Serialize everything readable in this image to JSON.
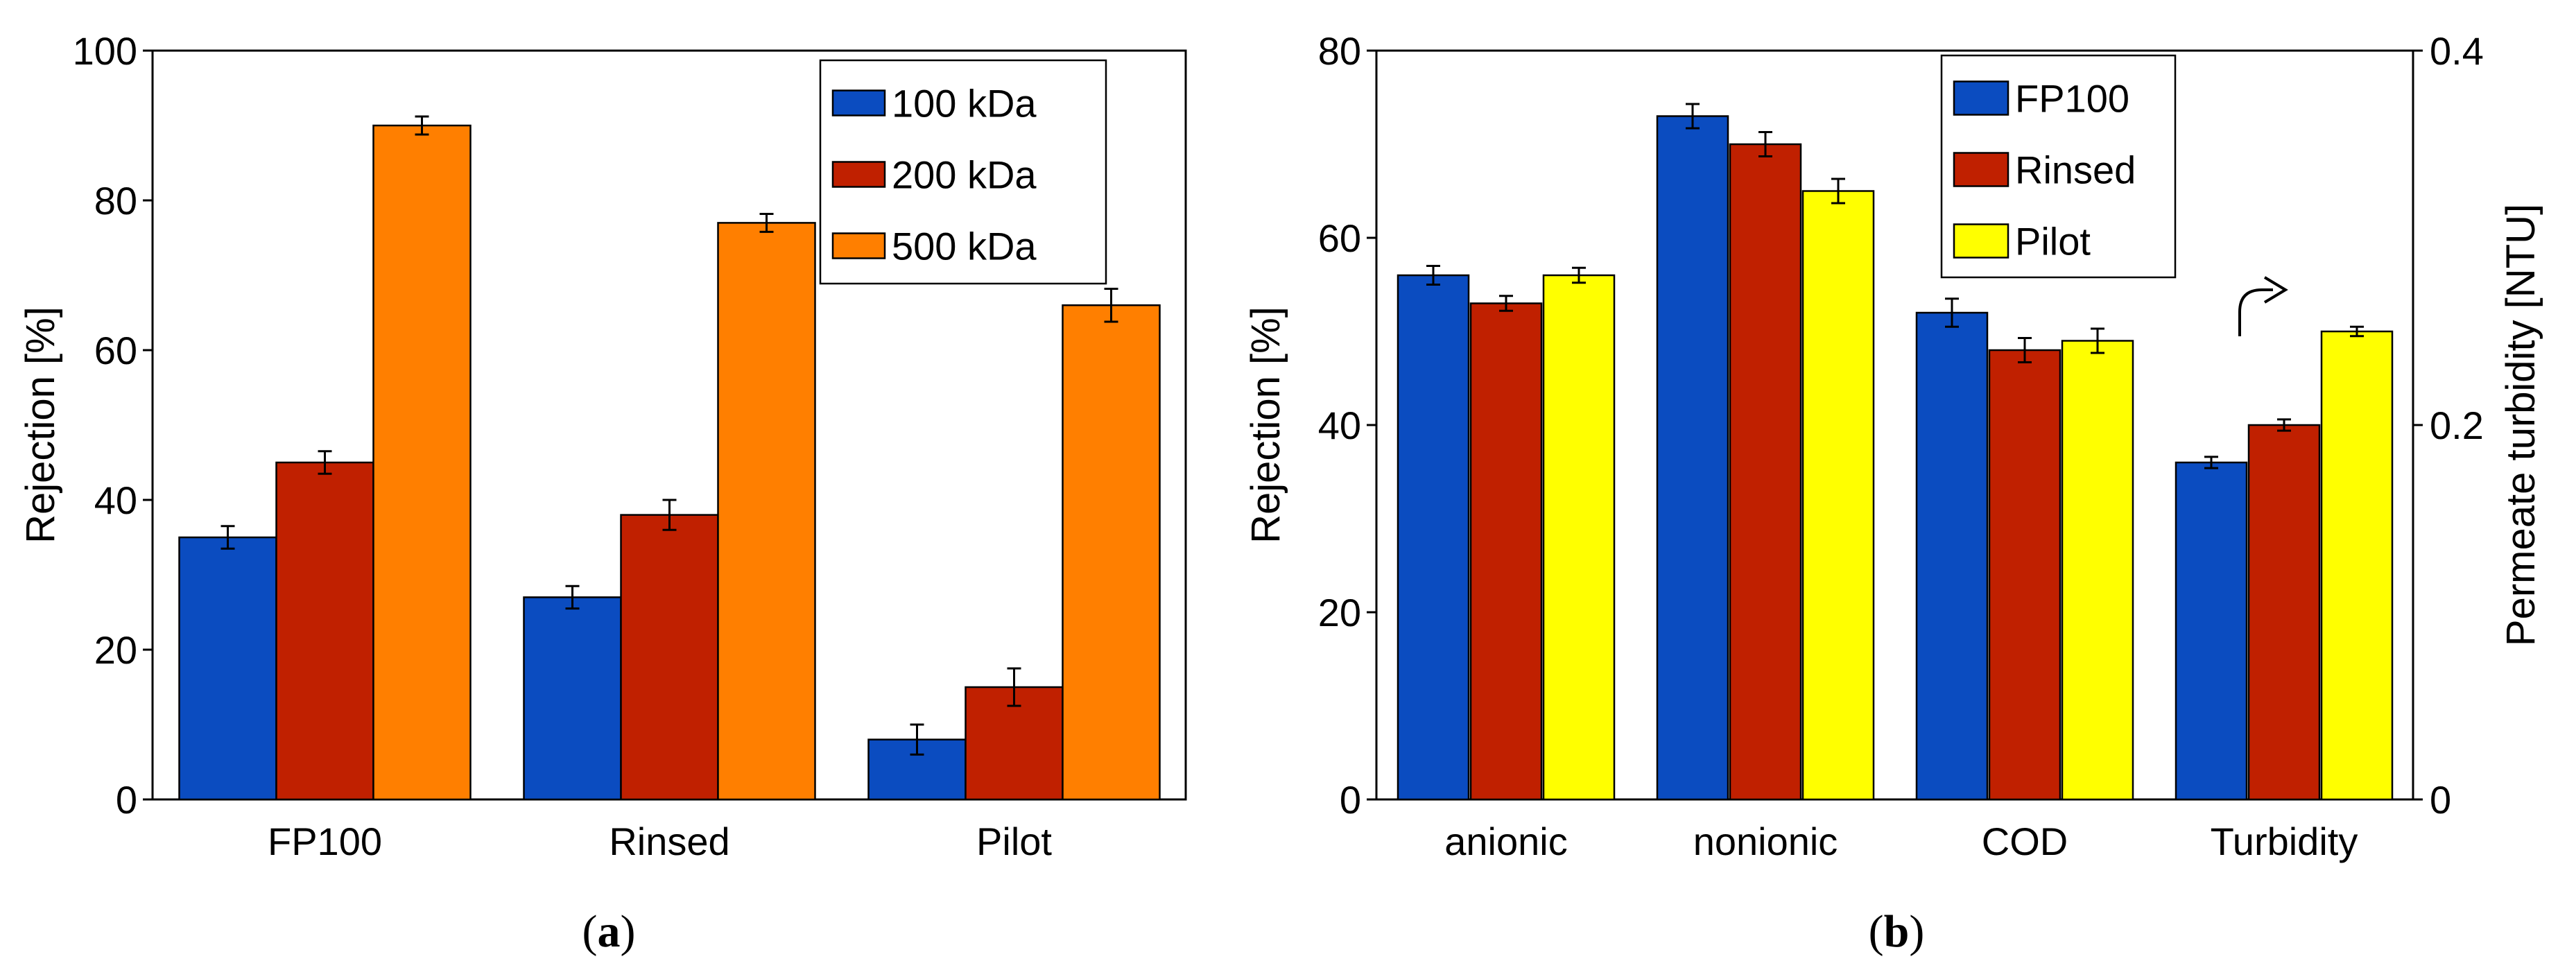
{
  "chart_data": [
    {
      "type": "bar",
      "panel_label": "a",
      "categories": [
        "FP100",
        "Rinsed",
        "Pilot"
      ],
      "series": [
        {
          "name": "100 kDa",
          "color": "#0b4cc0",
          "values": [
            35,
            27,
            8
          ],
          "errors": [
            1.5,
            1.5,
            2
          ]
        },
        {
          "name": "200 kDa",
          "color": "#c02000",
          "values": [
            45,
            38,
            15
          ],
          "errors": [
            1.5,
            2,
            2.5
          ]
        },
        {
          "name": "500 kDa",
          "color": "#ff7f00",
          "values": [
            90,
            77,
            66
          ],
          "errors": [
            1.2,
            1.2,
            2.2
          ]
        }
      ],
      "ylabel": "Rejection [%]",
      "xlabel": "",
      "ylim": [
        0,
        100
      ],
      "yticks": [
        "0",
        "20",
        "40",
        "60",
        "80",
        "100"
      ],
      "legend_position": "top-right",
      "grid": false
    },
    {
      "type": "bar",
      "panel_label": "b",
      "categories": [
        "anionic",
        "nonionic",
        "COD",
        "Turbidity"
      ],
      "series": [
        {
          "name": "FP100",
          "color": "#0b4cc0",
          "values": [
            56,
            73,
            52,
            36
          ],
          "errors": [
            1,
            1.3,
            1.5,
            0.6
          ]
        },
        {
          "name": "Rinsed",
          "color": "#c02000",
          "values": [
            53,
            70,
            48,
            40
          ],
          "errors": [
            0.8,
            1.3,
            1.3,
            0.6
          ]
        },
        {
          "name": "Pilot",
          "color": "#ffff00",
          "values": [
            56,
            65,
            49,
            50
          ],
          "errors": [
            0.8,
            1.3,
            1.3,
            0.5
          ]
        }
      ],
      "ylabel": "Rejection [%]",
      "ylim": [
        0,
        80
      ],
      "yticks": [
        "0",
        "20",
        "40",
        "60",
        "80"
      ],
      "y2label": "Permeate turbidity [NTU]",
      "y2lim": [
        0,
        0.4
      ],
      "y2ticks": [
        "0",
        "0.2",
        "0.4"
      ],
      "secondary_axis_category": "Turbidity",
      "legend_position": "top-center",
      "grid": false
    }
  ]
}
